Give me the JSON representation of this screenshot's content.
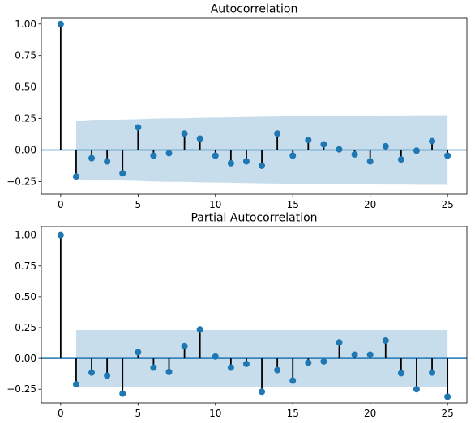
{
  "chart_data": [
    {
      "type": "stem",
      "title": "Autocorrelation",
      "xlabel": "",
      "ylabel": "",
      "xlim": [
        -1.25,
        26.25
      ],
      "ylim": [
        -0.35,
        1.05
      ],
      "x_ticks": [
        0,
        5,
        10,
        15,
        20,
        25
      ],
      "y_ticks": [
        -0.25,
        0.0,
        0.25,
        0.5,
        0.75,
        1.0
      ],
      "x_tick_labels": [
        "0",
        "5",
        "10",
        "15",
        "20",
        "25"
      ],
      "y_tick_labels": [
        "−0.25",
        "0.00",
        "0.25",
        "0.50",
        "0.75",
        "1.00"
      ],
      "lags": [
        0,
        1,
        2,
        3,
        4,
        5,
        6,
        7,
        8,
        9,
        10,
        11,
        12,
        13,
        14,
        15,
        16,
        17,
        18,
        19,
        20,
        21,
        22,
        23,
        24,
        25
      ],
      "values": [
        1.0,
        -0.21,
        -0.065,
        -0.09,
        -0.185,
        0.18,
        -0.045,
        -0.025,
        0.13,
        0.09,
        -0.045,
        -0.105,
        -0.09,
        -0.125,
        0.13,
        -0.045,
        0.08,
        0.045,
        0.005,
        -0.035,
        -0.09,
        0.03,
        -0.075,
        -0.005,
        0.07,
        -0.045
      ],
      "confidence_upper": [
        null,
        0.23,
        0.24,
        0.241,
        0.242,
        0.245,
        0.25,
        0.252,
        0.252,
        0.256,
        0.258,
        0.259,
        0.262,
        0.264,
        0.266,
        0.269,
        0.27,
        0.271,
        0.272,
        0.272,
        0.273,
        0.274,
        0.274,
        0.275,
        0.275,
        0.276
      ],
      "colors": {
        "marker": "#1f77b4",
        "stem": "#000000",
        "band": "#1f77b4",
        "zero_line": "#1f77b4"
      },
      "grid": false
    },
    {
      "type": "stem",
      "title": "Partial Autocorrelation",
      "xlabel": "",
      "ylabel": "",
      "xlim": [
        -1.25,
        26.25
      ],
      "ylim": [
        -0.36,
        1.07
      ],
      "x_ticks": [
        0,
        5,
        10,
        15,
        20,
        25
      ],
      "y_ticks": [
        -0.25,
        0.0,
        0.25,
        0.5,
        0.75,
        1.0
      ],
      "x_tick_labels": [
        "0",
        "5",
        "10",
        "15",
        "20",
        "25"
      ],
      "y_tick_labels": [
        "−0.25",
        "0.00",
        "0.25",
        "0.50",
        "0.75",
        "1.00"
      ],
      "lags": [
        0,
        1,
        2,
        3,
        4,
        5,
        6,
        7,
        8,
        9,
        10,
        11,
        12,
        13,
        14,
        15,
        16,
        17,
        18,
        19,
        20,
        21,
        22,
        23,
        24,
        25
      ],
      "values": [
        1.0,
        -0.21,
        -0.115,
        -0.14,
        -0.285,
        0.05,
        -0.075,
        -0.11,
        0.1,
        0.235,
        0.015,
        -0.075,
        -0.045,
        -0.27,
        -0.095,
        -0.18,
        -0.035,
        -0.025,
        0.13,
        0.03,
        0.03,
        0.145,
        -0.12,
        -0.25,
        -0.115,
        -0.31
      ],
      "confidence_upper": [
        null,
        0.23,
        0.23,
        0.23,
        0.23,
        0.23,
        0.23,
        0.23,
        0.23,
        0.23,
        0.23,
        0.23,
        0.23,
        0.23,
        0.23,
        0.23,
        0.23,
        0.23,
        0.23,
        0.23,
        0.23,
        0.23,
        0.23,
        0.23,
        0.23,
        0.23
      ],
      "colors": {
        "marker": "#1f77b4",
        "stem": "#000000",
        "band": "#1f77b4",
        "zero_line": "#1f77b4"
      },
      "grid": false
    }
  ]
}
